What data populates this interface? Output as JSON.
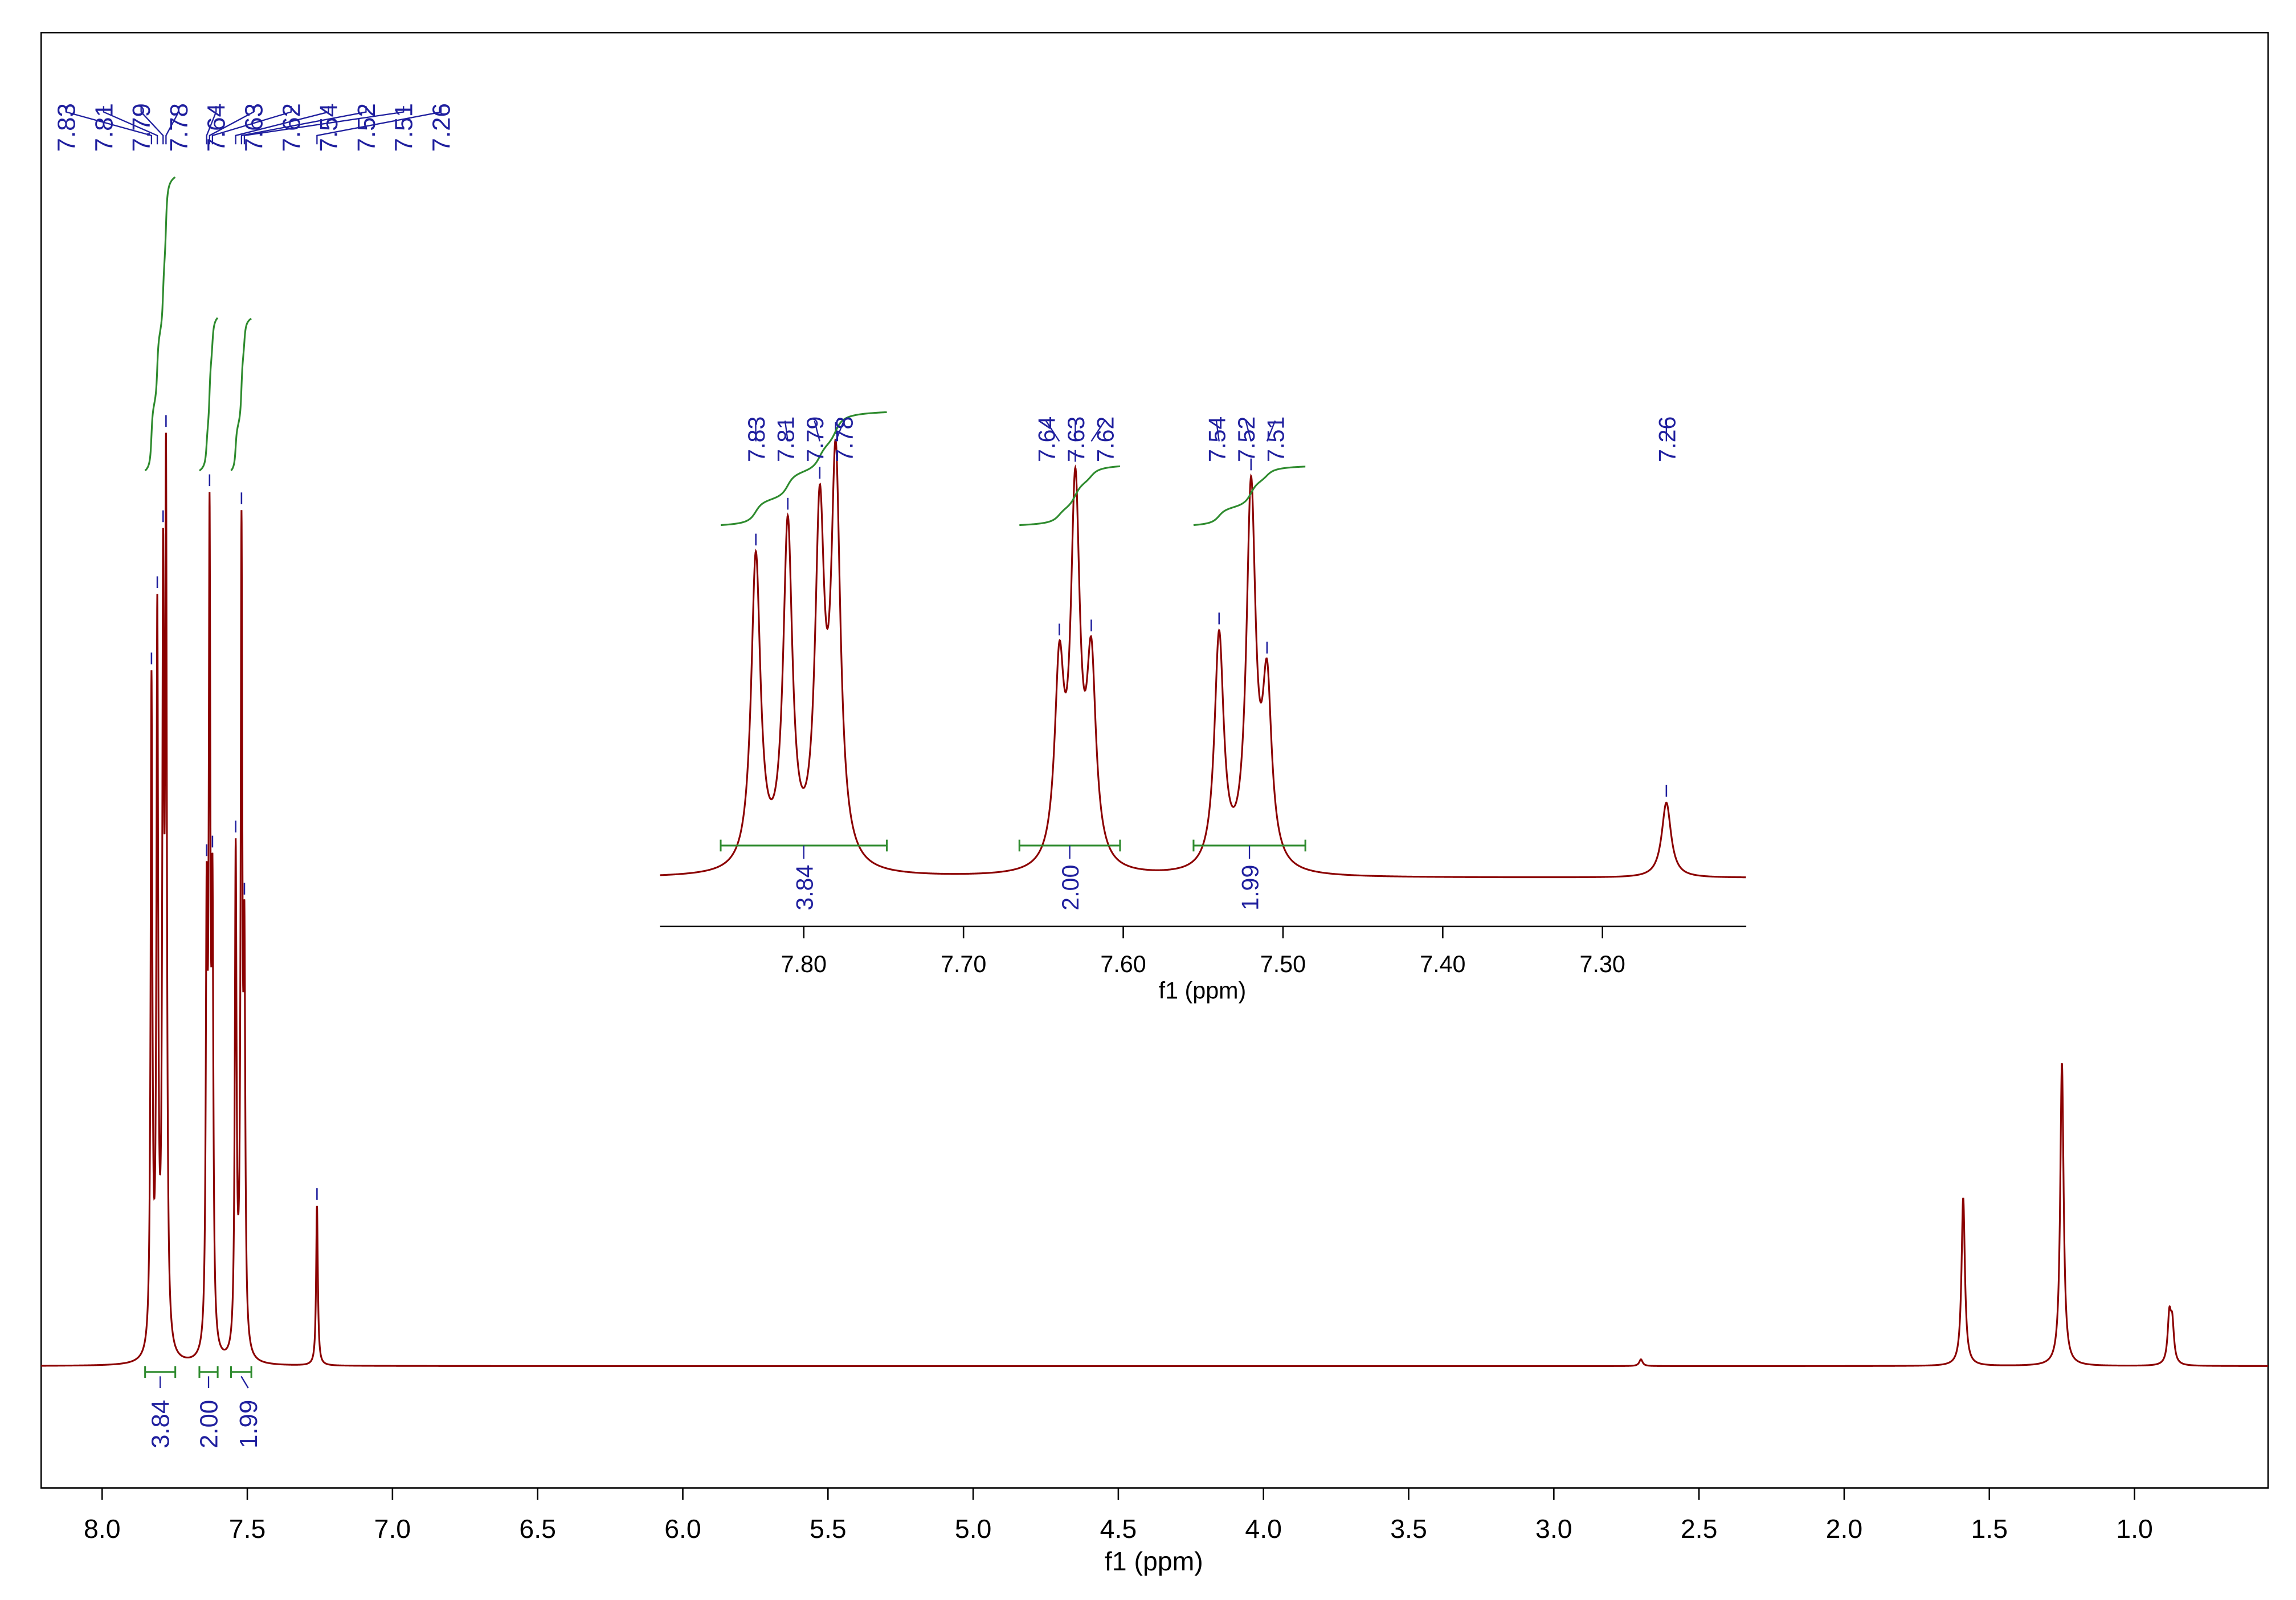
{
  "chart_data": {
    "type": "nmr",
    "x_label": "f1 (ppm)",
    "xlim": [
      8.21,
      0.54
    ],
    "xticks": [
      {
        "value": 8,
        "label": "8.0"
      },
      7.5,
      {
        "value": 7,
        "label": "7.0"
      },
      6.5,
      {
        "value": 6,
        "label": "6.0"
      },
      5.5,
      {
        "value": 5,
        "label": "5.0"
      },
      4.5,
      {
        "value": 4,
        "label": "4.0"
      },
      3.5,
      {
        "value": 3,
        "label": "3.0"
      },
      2.5,
      {
        "value": 2,
        "label": "2.0"
      },
      1.5,
      {
        "value": 1,
        "label": "1.0"
      }
    ],
    "ylim": [
      -0.145,
      1.586
    ],
    "color": "#8b0000",
    "label_color": "#1f1f9e",
    "integral_color": "#2e8b2e",
    "peaks": {
      "ppm": [
        7.83,
        7.81,
        7.79,
        7.78,
        7.64,
        7.63,
        7.62,
        7.54,
        7.52,
        7.51,
        7.26
      ],
      "height": [
        0.79,
        0.855,
        0.855,
        1.0,
        0.48,
        0.93,
        0.49,
        0.59,
        0.95,
        0.44,
        0.19
      ]
    },
    "other_peaks": {
      "ppm": [
        2.7,
        1.59,
        1.25,
        0.88,
        0.87
      ],
      "height": [
        0.008,
        0.2,
        0.36,
        0.055,
        0.045
      ]
    },
    "integrals": {
      "ranges": [
        [
          7.852,
          7.748
        ],
        [
          7.665,
          7.602
        ],
        [
          7.556,
          7.486
        ]
      ],
      "values": [
        3.84,
        2,
        1.99
      ],
      "value_labels": [
        "3.84",
        "2.00",
        "1.99"
      ]
    },
    "inset": {
      "x_label": "f1 (ppm)",
      "xlim": [
        7.89,
        7.21
      ],
      "ylim": [
        -0.123,
        1.33
      ],
      "xticks": [
        {
          "value": 7.8,
          "label": "7.80"
        },
        {
          "value": 7.7,
          "label": "7.70"
        },
        {
          "value": 7.6,
          "label": "7.60"
        },
        {
          "value": 7.5,
          "label": "7.50"
        },
        {
          "value": 7.4,
          "label": "7.40"
        },
        {
          "value": 7.3,
          "label": "7.30"
        }
      ]
    }
  }
}
